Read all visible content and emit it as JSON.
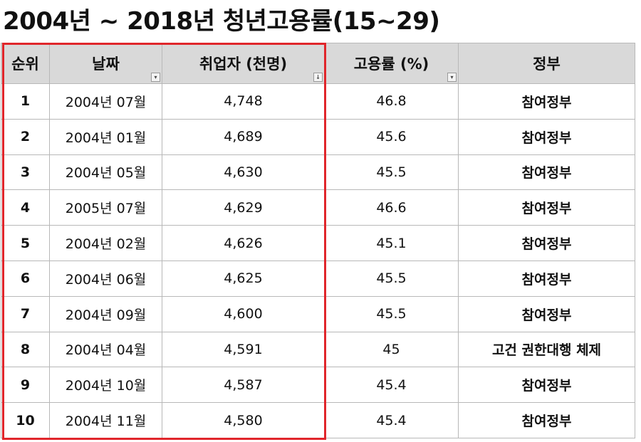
{
  "title": "2004년 ~ 2018년 청년고용률(15~29)",
  "headers": [
    "순위",
    "날짜",
    "취업자 (천명)",
    "고용률 (%)",
    "정부"
  ],
  "filter_icons": [
    "funnel-sort-icon",
    "sort-down-icon",
    "dropdown-arrow-icon"
  ],
  "rows": [
    {
      "rank": "1",
      "date": "2004년 07월",
      "employed": "4,748",
      "rate": "46.8",
      "gov": "참여정부"
    },
    {
      "rank": "2",
      "date": "2004년 01월",
      "employed": "4,689",
      "rate": "45.6",
      "gov": "참여정부"
    },
    {
      "rank": "3",
      "date": "2004년 05월",
      "employed": "4,630",
      "rate": "45.5",
      "gov": "참여정부"
    },
    {
      "rank": "4",
      "date": "2005년 07월",
      "employed": "4,629",
      "rate": "46.6",
      "gov": "참여정부"
    },
    {
      "rank": "5",
      "date": "2004년 02월",
      "employed": "4,626",
      "rate": "45.1",
      "gov": "참여정부"
    },
    {
      "rank": "6",
      "date": "2004년 06월",
      "employed": "4,625",
      "rate": "45.5",
      "gov": "참여정부"
    },
    {
      "rank": "7",
      "date": "2004년 09월",
      "employed": "4,600",
      "rate": "45.5",
      "gov": "참여정부"
    },
    {
      "rank": "8",
      "date": "2004년 04월",
      "employed": "4,591",
      "rate": "45",
      "gov": "고건 권한대행 체제"
    },
    {
      "rank": "9",
      "date": "2004년 10월",
      "employed": "4,587",
      "rate": "45.4",
      "gov": "참여정부"
    },
    {
      "rank": "10",
      "date": "2004년 11월",
      "employed": "4,580",
      "rate": "45.4",
      "gov": "참여정부"
    }
  ],
  "colors": {
    "header_bg": "#d9d9d9",
    "grid_line": "#b8b8b8",
    "highlight": "#e0262b"
  }
}
